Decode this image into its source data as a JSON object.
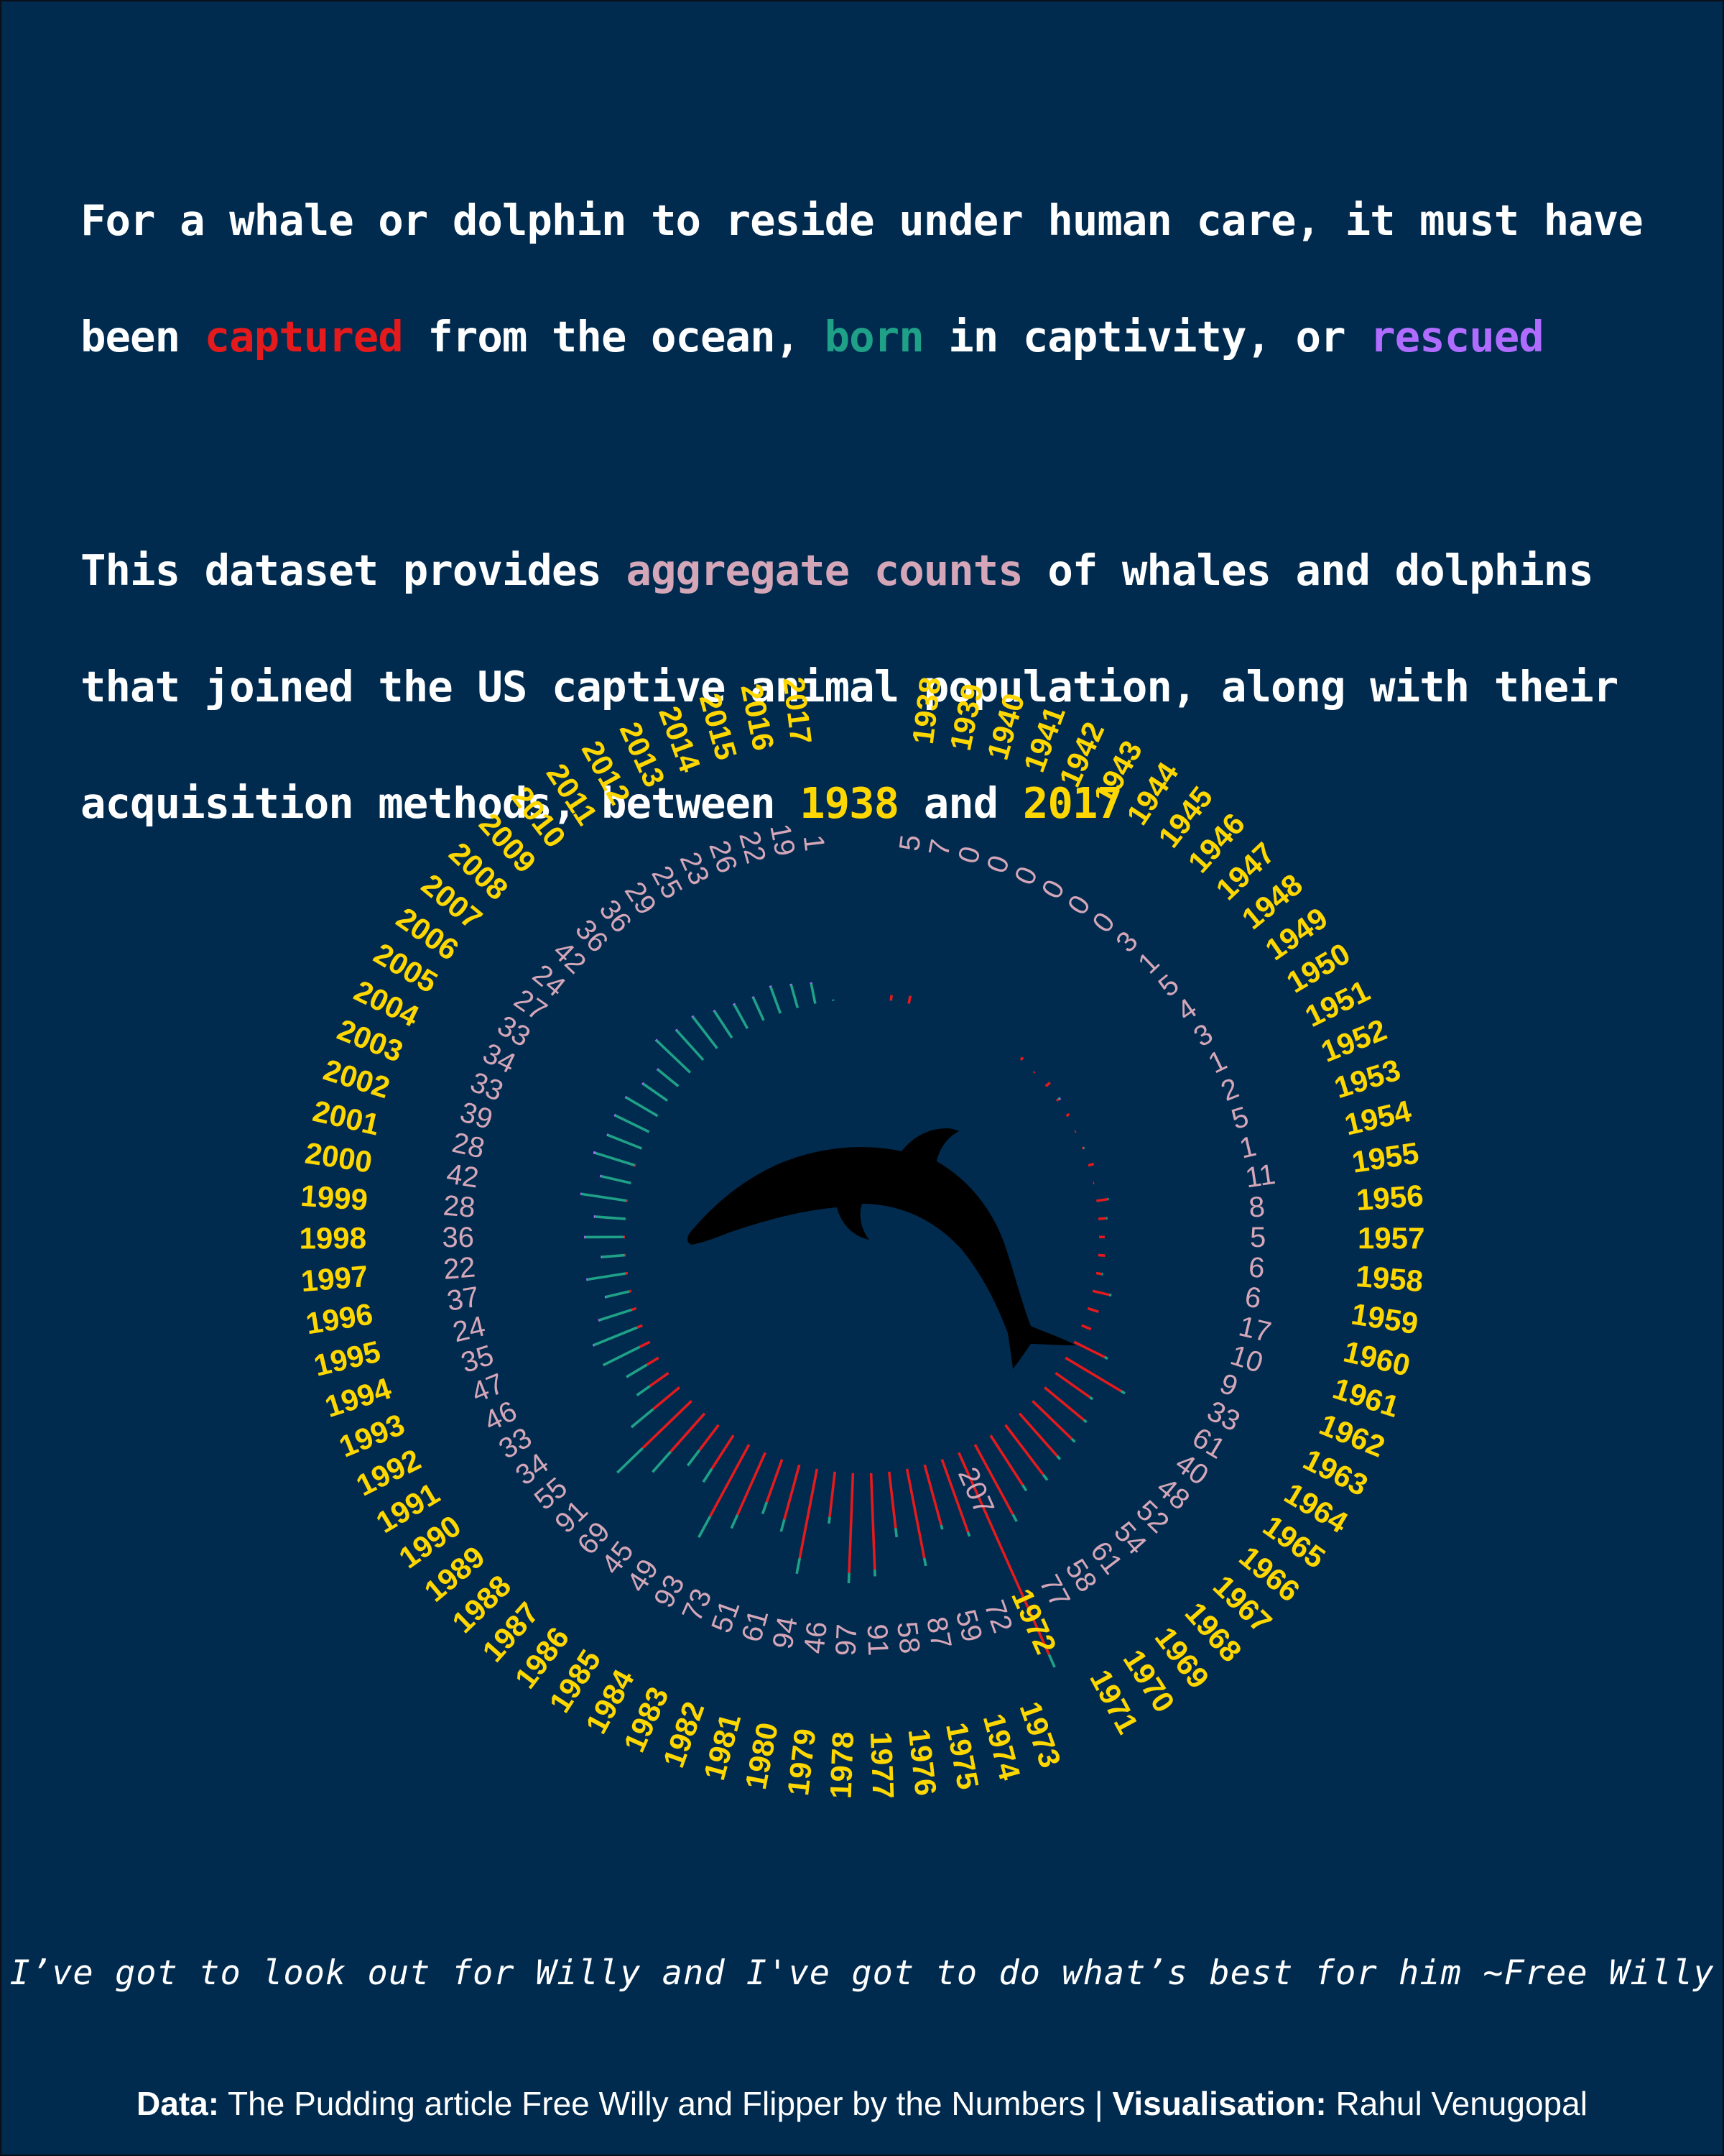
{
  "intro": {
    "line1": "For a whale or dolphin to reside under human care, it must have",
    "line2_a": "been ",
    "word_captured": "captured",
    "line2_b": " from the ocean, ",
    "word_born": "born",
    "line2_c": " in captivity, or ",
    "word_rescued": "rescued",
    "p2_a": "This dataset provides ",
    "word_aggregate_counts": "aggregate counts",
    "p2_b": " of whales and dolphins",
    "p2_line2": "that joined the US captive animal population, along with their",
    "p2_line3_a": "acquisition methods, between ",
    "year_start": "1938",
    "p2_line3_b": " and ",
    "year_end": "2017"
  },
  "colors": {
    "background": "#002b4f",
    "captured": "#e41a1c",
    "born": "#1fa187",
    "rescued": "#b06bff",
    "total_label": "#d4a6b8",
    "year_label": "#ffd700"
  },
  "center_icon": "dolphin-silhouette-icon",
  "chart_data": {
    "type": "bar",
    "layout": "radial stacked bar",
    "categories": [
      "1938",
      "1939",
      "1940",
      "1941",
      "1942",
      "1943",
      "1944",
      "1945",
      "1946",
      "1947",
      "1948",
      "1949",
      "1950",
      "1951",
      "1952",
      "1953",
      "1954",
      "1955",
      "1956",
      "1957",
      "1958",
      "1959",
      "1960",
      "1961",
      "1962",
      "1963",
      "1964",
      "1965",
      "1966",
      "1967",
      "1968",
      "1969",
      "1970",
      "1971",
      "1972",
      "1973",
      "1974",
      "1975",
      "1976",
      "1977",
      "1978",
      "1979",
      "1980",
      "1981",
      "1982",
      "1983",
      "1984",
      "1985",
      "1986",
      "1987",
      "1988",
      "1989",
      "1990",
      "1991",
      "1992",
      "1993",
      "1994",
      "1995",
      "1996",
      "1997",
      "1998",
      "1999",
      "2000",
      "2001",
      "2002",
      "2003",
      "2004",
      "2005",
      "2006",
      "2007",
      "2008",
      "2009",
      "2010",
      "2011",
      "2012",
      "2013",
      "2014",
      "2015",
      "2016",
      "2017"
    ],
    "totals": [
      5,
      7,
      0,
      0,
      0,
      0,
      0,
      0,
      3,
      1,
      5,
      4,
      3,
      1,
      2,
      5,
      1,
      11,
      8,
      5,
      6,
      6,
      17,
      10,
      9,
      33,
      61,
      40,
      48,
      52,
      54,
      61,
      58,
      77,
      207,
      72,
      59,
      87,
      58,
      91,
      97,
      46,
      94,
      61,
      51,
      73,
      93,
      49,
      45,
      69,
      91,
      55,
      34,
      33,
      46,
      47,
      35,
      24,
      37,
      22,
      36,
      28,
      42,
      28,
      39,
      33,
      34,
      33,
      27,
      24,
      42,
      36,
      36,
      29,
      25,
      23,
      26,
      22,
      19,
      1
    ],
    "series": [
      {
        "name": "captured",
        "values": [
          5,
          7,
          0,
          0,
          0,
          0,
          0,
          0,
          3,
          1,
          5,
          2,
          3,
          1,
          1,
          5,
          1,
          10,
          7,
          5,
          6,
          5,
          15,
          10,
          9,
          30,
          57,
          37,
          45,
          48,
          50,
          55,
          52,
          70,
          195,
          68,
          55,
          80,
          50,
          85,
          88,
          40,
          80,
          50,
          40,
          60,
          72,
          35,
          28,
          45,
          60,
          30,
          20,
          12,
          10,
          5,
          4,
          2,
          2,
          1,
          1,
          0,
          1,
          0,
          1,
          0,
          0,
          0,
          0,
          0,
          0,
          0,
          0,
          0,
          0,
          0,
          0,
          0,
          0,
          0
        ]
      },
      {
        "name": "born",
        "values": [
          0,
          0,
          0,
          0,
          0,
          0,
          0,
          0,
          0,
          0,
          0,
          1,
          0,
          0,
          1,
          0,
          0,
          1,
          1,
          0,
          0,
          1,
          2,
          0,
          0,
          3,
          4,
          3,
          3,
          4,
          4,
          6,
          6,
          7,
          12,
          4,
          4,
          7,
          8,
          6,
          9,
          6,
          14,
          11,
          11,
          13,
          21,
          14,
          17,
          24,
          31,
          25,
          14,
          21,
          36,
          41,
          30,
          21,
          34,
          20,
          34,
          27,
          40,
          27,
          36,
          32,
          33,
          32,
          26,
          23,
          41,
          35,
          35,
          28,
          24,
          22,
          25,
          21,
          18,
          1
        ]
      },
      {
        "name": "rescued",
        "values": [
          0,
          0,
          0,
          0,
          0,
          0,
          0,
          0,
          0,
          0,
          0,
          1,
          0,
          0,
          0,
          0,
          0,
          0,
          0,
          0,
          0,
          0,
          0,
          0,
          0,
          0,
          0,
          0,
          0,
          0,
          0,
          0,
          0,
          0,
          0,
          0,
          0,
          0,
          0,
          0,
          0,
          0,
          0,
          0,
          0,
          0,
          0,
          0,
          0,
          0,
          0,
          0,
          0,
          0,
          0,
          1,
          1,
          1,
          1,
          1,
          1,
          1,
          1,
          1,
          2,
          1,
          1,
          1,
          1,
          1,
          1,
          1,
          1,
          1,
          1,
          1,
          1,
          1,
          1,
          0
        ]
      }
    ],
    "highlight_category": "1972"
  },
  "quote": "I’ve got to look out for Willy and I've got to do what’s best for him ~Free Willy",
  "credits": {
    "data_label": "Data:",
    "data_text": " The Pudding article Free Willy and Flipper by the Numbers | ",
    "vis_label": "Visualisation:",
    "vis_text": " Rahul Venugopal"
  }
}
